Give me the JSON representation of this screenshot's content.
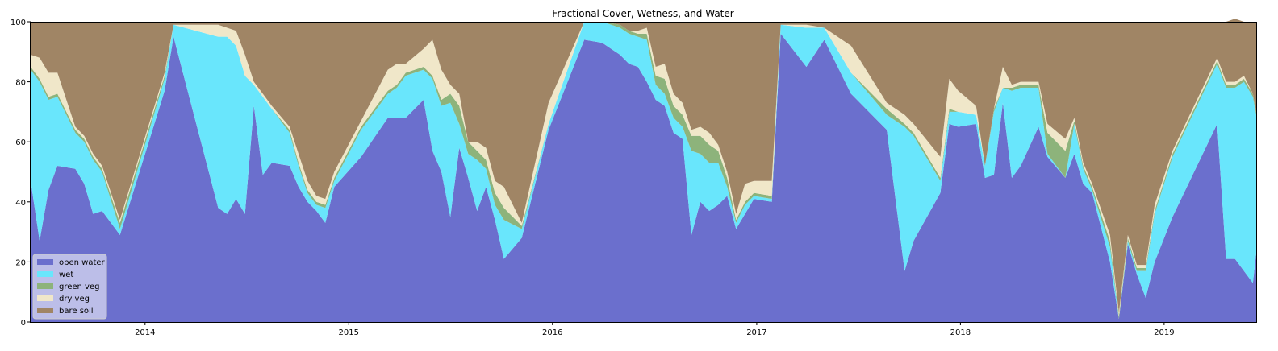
{
  "chart_data": {
    "type": "area",
    "stacked": true,
    "title": "Fractional Cover, Wetness, and Water",
    "xlabel": "",
    "ylabel": "",
    "xlim": [
      "2013-06-10",
      "2019-06-15"
    ],
    "ylim": [
      0,
      100
    ],
    "x_ticks": [
      "2014-01-01",
      "2015-01-01",
      "2016-01-01",
      "2017-01-01",
      "2018-01-01",
      "2019-01-01"
    ],
    "x_tick_labels": [
      "2014",
      "2015",
      "2016",
      "2017",
      "2018",
      "2019"
    ],
    "y_ticks": [
      0,
      20,
      40,
      60,
      80,
      100
    ],
    "y_tick_labels": [
      "0",
      "20",
      "40",
      "60",
      "80",
      "100"
    ],
    "grid": false,
    "legend_position": "lower-left",
    "x": [
      "2013-06-10",
      "2013-06-26",
      "2013-07-12",
      "2013-07-28",
      "2013-08-29",
      "2013-09-14",
      "2013-09-30",
      "2013-10-16",
      "2013-11-17",
      "2014-02-05",
      "2014-02-21",
      "2014-05-12",
      "2014-05-28",
      "2014-06-13",
      "2014-06-29",
      "2014-07-15",
      "2014-07-31",
      "2014-08-16",
      "2014-09-17",
      "2014-10-03",
      "2014-10-19",
      "2014-11-04",
      "2014-11-20",
      "2014-12-06",
      "2015-01-23",
      "2015-03-12",
      "2015-03-28",
      "2015-04-13",
      "2015-05-15",
      "2015-05-31",
      "2015-06-16",
      "2015-07-02",
      "2015-07-18",
      "2015-08-03",
      "2015-08-19",
      "2015-09-04",
      "2015-09-20",
      "2015-10-06",
      "2015-11-07",
      "2015-12-25",
      "2016-02-27",
      "2016-03-30",
      "2016-05-01",
      "2016-05-17",
      "2016-06-02",
      "2016-06-18",
      "2016-07-04",
      "2016-07-20",
      "2016-08-05",
      "2016-08-21",
      "2016-09-06",
      "2016-09-22",
      "2016-10-08",
      "2016-10-24",
      "2016-11-09",
      "2016-11-25",
      "2016-12-11",
      "2016-12-27",
      "2017-01-28",
      "2017-02-13",
      "2017-03-31",
      "2017-05-02",
      "2017-06-19",
      "2017-08-22",
      "2017-09-23",
      "2017-10-09",
      "2017-11-26",
      "2017-12-12",
      "2017-12-28",
      "2018-01-29",
      "2018-02-14",
      "2018-03-02",
      "2018-03-18",
      "2018-04-03",
      "2018-04-19",
      "2018-05-21",
      "2018-06-06",
      "2018-07-08",
      "2018-07-24",
      "2018-08-09",
      "2018-08-25",
      "2018-09-26",
      "2018-10-12",
      "2018-10-28",
      "2018-11-13",
      "2018-11-29",
      "2018-12-15",
      "2019-01-16",
      "2019-04-06",
      "2019-04-22",
      "2019-05-08",
      "2019-05-24",
      "2019-06-09",
      "2019-06-15"
    ],
    "series": [
      {
        "name": "open water",
        "color": "#6b6fcd",
        "values": [
          47,
          27,
          44,
          52,
          51,
          46,
          36,
          37,
          29,
          77,
          95,
          38,
          36,
          41,
          36,
          72,
          49,
          53,
          52,
          45,
          40,
          37,
          33,
          45,
          55,
          68,
          68,
          68,
          74,
          57,
          50,
          35,
          58,
          48,
          37,
          45,
          34,
          21,
          28,
          64,
          94,
          93,
          89,
          86,
          85,
          80,
          74,
          72,
          63,
          61,
          29,
          40,
          37,
          39,
          42,
          31,
          36,
          41,
          40,
          96,
          85,
          94,
          76,
          64,
          17,
          27,
          43,
          66,
          65,
          66,
          48,
          49,
          73,
          48,
          52,
          65,
          55,
          48,
          56,
          46,
          43,
          20,
          1,
          26,
          16,
          8,
          20,
          35,
          66,
          21,
          21,
          17,
          13,
          23
        ]
      },
      {
        "name": "wet",
        "color": "#69e6fc",
        "values": [
          37,
          53,
          30,
          23,
          12,
          14,
          18,
          13,
          2,
          4,
          4,
          57,
          59,
          51,
          46,
          7,
          26,
          18,
          11,
          7,
          3,
          2,
          5,
          2,
          9,
          8,
          10,
          14,
          10,
          24,
          22,
          38,
          8,
          8,
          17,
          6,
          5,
          13,
          3,
          2,
          6,
          7,
          9,
          10,
          10,
          14,
          5,
          4,
          5,
          4,
          28,
          16,
          16,
          14,
          3,
          2,
          3,
          1,
          1,
          3,
          13,
          4,
          7,
          5,
          48,
          35,
          4,
          4,
          5,
          3,
          4,
          21,
          5,
          29,
          26,
          13,
          1,
          0,
          10,
          5,
          1,
          5,
          0,
          1,
          1,
          9,
          16,
          20,
          20,
          57,
          57,
          63,
          62,
          46
        ]
      },
      {
        "name": "green veg",
        "color": "#8db37b",
        "values": [
          1,
          1,
          1,
          1,
          1,
          1,
          1,
          1,
          2,
          1,
          0,
          0,
          0,
          0,
          0,
          0,
          0,
          0,
          1,
          1,
          1,
          1,
          1,
          1,
          1,
          1,
          1,
          1,
          1,
          1,
          2,
          3,
          6,
          4,
          3,
          3,
          4,
          4,
          1,
          0,
          0,
          0,
          1,
          1,
          1,
          2,
          3,
          5,
          4,
          4,
          5,
          6,
          6,
          4,
          3,
          1,
          1,
          1,
          1,
          0,
          0,
          0,
          0,
          2,
          1,
          1,
          1,
          1,
          0,
          0,
          0,
          1,
          0,
          1,
          1,
          1,
          7,
          9,
          1,
          1,
          1,
          2,
          1,
          1,
          1,
          1,
          1,
          1,
          1,
          1,
          1,
          1,
          1,
          1
        ]
      },
      {
        "name": "dry veg",
        "color": "#f0e7c9",
        "values": [
          4,
          7,
          8,
          7,
          1,
          1,
          1,
          1,
          1,
          1,
          0,
          4,
          3,
          5,
          7,
          1,
          1,
          1,
          1,
          3,
          3,
          2,
          2,
          2,
          2,
          7,
          7,
          3,
          6,
          12,
          10,
          3,
          4,
          0,
          3,
          4,
          4,
          7,
          1,
          7,
          0,
          0,
          0,
          0,
          1,
          2,
          3,
          5,
          4,
          4,
          2,
          3,
          4,
          2,
          2,
          2,
          6,
          4,
          5,
          0,
          1,
          0,
          9,
          2,
          3,
          3,
          7,
          10,
          7,
          3,
          0,
          0,
          7,
          1,
          1,
          1,
          3,
          4,
          1,
          1,
          1,
          2,
          1,
          1,
          1,
          1,
          2,
          1,
          1,
          1,
          1,
          1,
          0,
          0
        ]
      },
      {
        "name": "bare soil",
        "color": "#a08565",
        "values": [
          11,
          12,
          17,
          17,
          35,
          38,
          44,
          48,
          66,
          17,
          1,
          1,
          2,
          3,
          11,
          20,
          24,
          28,
          35,
          44,
          53,
          58,
          59,
          50,
          33,
          16,
          14,
          14,
          9,
          6,
          16,
          21,
          24,
          40,
          40,
          42,
          53,
          55,
          67,
          27,
          0,
          0,
          1,
          3,
          3,
          2,
          15,
          14,
          24,
          27,
          36,
          35,
          37,
          41,
          50,
          64,
          54,
          53,
          53,
          1,
          1,
          2,
          8,
          27,
          31,
          34,
          45,
          19,
          23,
          28,
          48,
          29,
          15,
          21,
          20,
          20,
          34,
          39,
          32,
          47,
          54,
          71,
          97,
          71,
          81,
          81,
          61,
          43,
          12,
          20,
          21,
          18,
          24,
          30
        ]
      }
    ]
  }
}
